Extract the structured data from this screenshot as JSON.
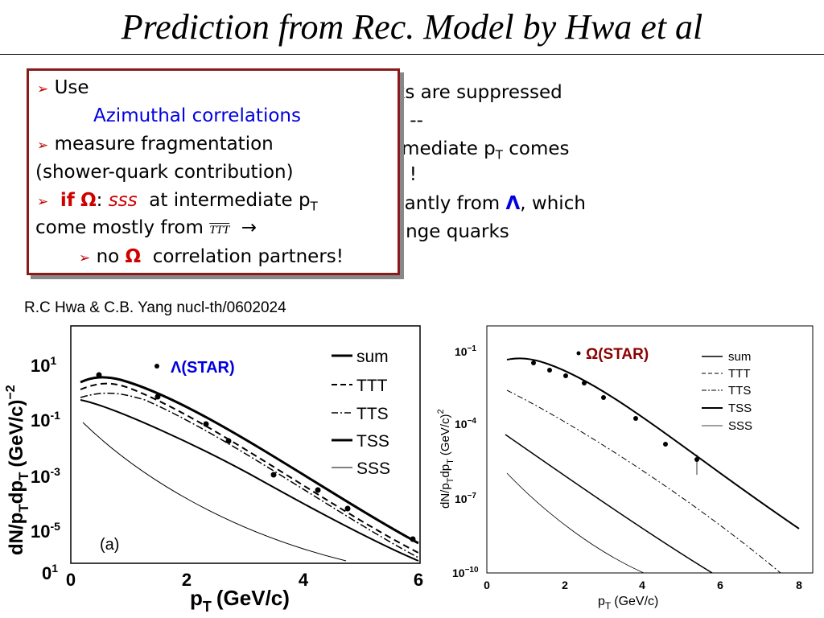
{
  "header": {
    "title": "Prediction from Rec. Model by Hwa et al"
  },
  "background_text": [
    "ks are suppressed",
    "s --",
    "rmediate p",
    "T",
    " comes",
    "– !",
    "cantly from ",
    "Λ",
    ", which",
    "ange quarks"
  ],
  "textbox": {
    "l1": "Use",
    "l2": "Azimuthal correlations",
    "l3": "measure fragmentation",
    "l4": "(shower-quark contribution)",
    "l5a": "if",
    "l5b": "Ω",
    "l5c": ":",
    "l5d": "sss",
    "l5e": "at intermediate p",
    "l5f": "T",
    "l6a": "come mostly from",
    "l6b": "TTT",
    "l7a": "no",
    "l7b": "Ω",
    "l7c": "correlation partners!"
  },
  "citation": "R.C Hwa & C.B. Yang nucl-th/0602024",
  "plots": [
    {
      "ylabel": "dN/p",
      "ylabel_sub": "T",
      "ylabel_mid": "dp",
      "ylabel_sub2": "T",
      "ylabel_unit": "(GeV/c)",
      "ylabel_exp": "−2",
      "xlabel": "p",
      "xlabel_sub": "T",
      "xlabel_unit": "(GeV/c)",
      "yticks": [
        {
          "base": "10",
          "exp": "1"
        },
        {
          "base": "10",
          "exp": "-1"
        },
        {
          "base": "10",
          "exp": "-3"
        },
        {
          "base": "10",
          "exp": "-5"
        },
        {
          "base": "0",
          "exp": "1"
        }
      ],
      "xticks": [
        "0",
        "2",
        "4",
        "6"
      ],
      "legend": [
        "sum",
        "TTT",
        "TTS",
        "TSS",
        "SSS"
      ],
      "data_label": "Λ(STAR)",
      "panel": "(a)"
    },
    {
      "ylabel": "dN/p",
      "ylabel_sub": "T",
      "ylabel_mid": "dp",
      "ylabel_sub2": "T",
      "ylabel_unit": "(GeV/c)",
      "ylabel_exp": "2",
      "xlabel": "p",
      "xlabel_sub": "T",
      "xlabel_unit": "(GeV/c)",
      "yticks": [
        {
          "base": "10",
          "exp": "−1"
        },
        {
          "base": "10",
          "exp": "−4"
        },
        {
          "base": "10",
          "exp": "−7"
        },
        {
          "base": "10",
          "exp": "−10"
        }
      ],
      "xticks": [
        "0",
        "2",
        "4",
        "6",
        "8"
      ],
      "legend": [
        "sum",
        "TTT",
        "TTS",
        "TSS",
        "SSS"
      ],
      "data_label": "Ω(STAR)"
    }
  ]
}
